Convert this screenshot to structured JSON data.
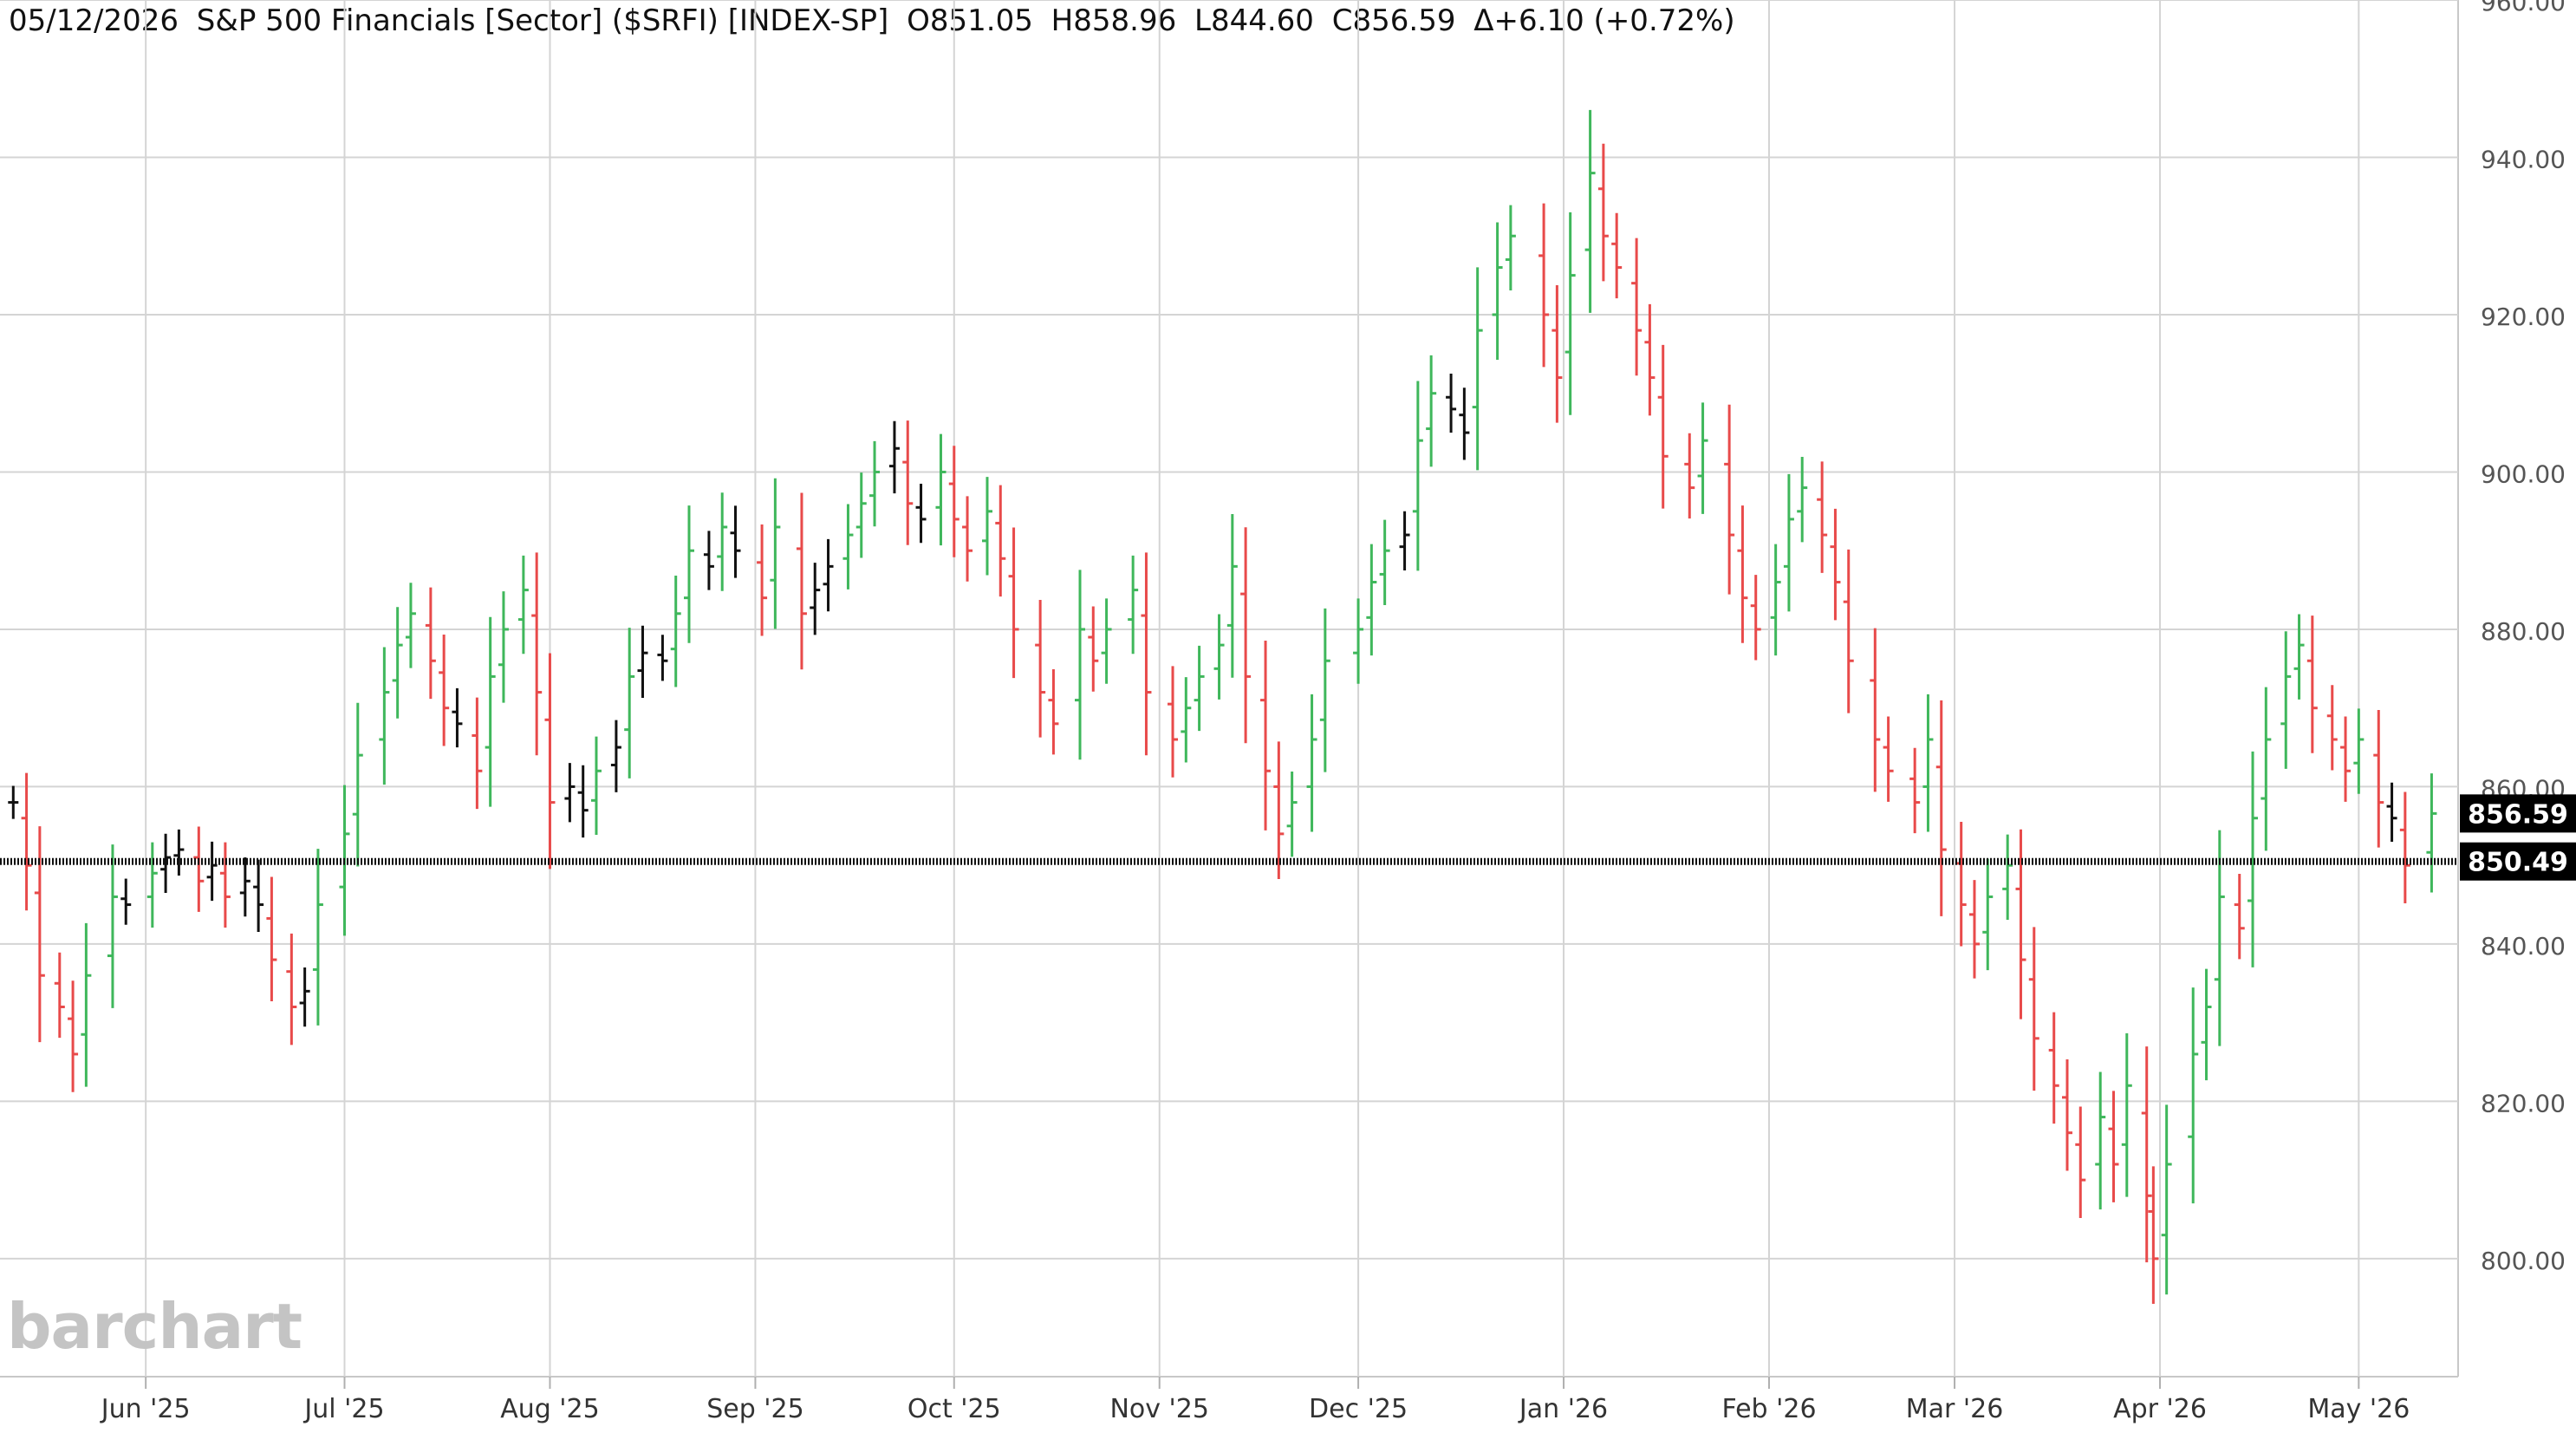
{
  "header": {
    "date": "05/12/2026",
    "name": "S&P 500 Financials [Sector] ($SRFI) [INDEX-SP]",
    "open": "O851.05",
    "high": "H858.96",
    "low": "L844.60",
    "close": "C856.59",
    "change": "Δ+6.10 (+0.72%)"
  },
  "watermark": "barchart",
  "colors": {
    "up": "#3fb75b",
    "down": "#e84a4a",
    "neutral": "#111111",
    "grid": "#d4d4d4",
    "axis_text": "#555555"
  },
  "chart_data": {
    "type": "ohlc-bar",
    "symbol": "$SRFI",
    "ylim": [
      785,
      960
    ],
    "yticks": [
      800,
      820,
      840,
      860,
      880,
      900,
      920,
      940,
      960
    ],
    "ytick_labels": [
      "800.00",
      "820.00",
      "840.00",
      "860.00",
      "880.00",
      "900.00",
      "920.00",
      "940.00",
      "960.00"
    ],
    "xticks": [
      {
        "label": "Jun '25",
        "date": "2025-06-01"
      },
      {
        "label": "Jul '25",
        "date": "2025-07-01"
      },
      {
        "label": "Aug '25",
        "date": "2025-08-01"
      },
      {
        "label": "Sep '25",
        "date": "2025-09-01"
      },
      {
        "label": "Oct '25",
        "date": "2025-10-01"
      },
      {
        "label": "Nov '25",
        "date": "2025-11-01"
      },
      {
        "label": "Dec '25",
        "date": "2025-12-01"
      },
      {
        "label": "Jan '26",
        "date": "2026-01-01"
      },
      {
        "label": "Feb '26",
        "date": "2026-02-01"
      },
      {
        "label": "Mar '26",
        "date": "2026-03-01"
      },
      {
        "label": "Apr '26",
        "date": "2026-04-01"
      },
      {
        "label": "May '26",
        "date": "2026-05-01"
      }
    ],
    "last_price": 856.59,
    "last_price_label": "856.59",
    "reference_line": 850.49,
    "reference_line_label": "850.49",
    "grid": true,
    "series": [
      {
        "x": "2025-05-12",
        "close": 858
      },
      {
        "x": "2025-05-14",
        "close": 850
      },
      {
        "x": "2025-05-16",
        "close": 836
      },
      {
        "x": "2025-05-19",
        "close": 832
      },
      {
        "x": "2025-05-21",
        "close": 826
      },
      {
        "x": "2025-05-23",
        "close": 836
      },
      {
        "x": "2025-05-27",
        "close": 846
      },
      {
        "x": "2025-05-29",
        "close": 845
      },
      {
        "x": "2025-06-02",
        "close": 849
      },
      {
        "x": "2025-06-04",
        "close": 851
      },
      {
        "x": "2025-06-06",
        "close": 852
      },
      {
        "x": "2025-06-09",
        "close": 848
      },
      {
        "x": "2025-06-11",
        "close": 850
      },
      {
        "x": "2025-06-13",
        "close": 846
      },
      {
        "x": "2025-06-16",
        "close": 848
      },
      {
        "x": "2025-06-18",
        "close": 845
      },
      {
        "x": "2025-06-20",
        "close": 838
      },
      {
        "x": "2025-06-23",
        "close": 832
      },
      {
        "x": "2025-06-25",
        "close": 834
      },
      {
        "x": "2025-06-27",
        "close": 845
      },
      {
        "x": "2025-07-01",
        "close": 854
      },
      {
        "x": "2025-07-03",
        "close": 864
      },
      {
        "x": "2025-07-07",
        "close": 872
      },
      {
        "x": "2025-07-09",
        "close": 878
      },
      {
        "x": "2025-07-11",
        "close": 882
      },
      {
        "x": "2025-07-14",
        "close": 876
      },
      {
        "x": "2025-07-16",
        "close": 870
      },
      {
        "x": "2025-07-18",
        "close": 868
      },
      {
        "x": "2025-07-21",
        "close": 862
      },
      {
        "x": "2025-07-23",
        "close": 874
      },
      {
        "x": "2025-07-25",
        "close": 880
      },
      {
        "x": "2025-07-28",
        "close": 885
      },
      {
        "x": "2025-07-30",
        "close": 872
      },
      {
        "x": "2025-08-01",
        "close": 858
      },
      {
        "x": "2025-08-04",
        "close": 860
      },
      {
        "x": "2025-08-06",
        "close": 857
      },
      {
        "x": "2025-08-08",
        "close": 862
      },
      {
        "x": "2025-08-11",
        "close": 865
      },
      {
        "x": "2025-08-13",
        "close": 874
      },
      {
        "x": "2025-08-15",
        "close": 877
      },
      {
        "x": "2025-08-18",
        "close": 876
      },
      {
        "x": "2025-08-20",
        "close": 882
      },
      {
        "x": "2025-08-22",
        "close": 890
      },
      {
        "x": "2025-08-25",
        "close": 888
      },
      {
        "x": "2025-08-27",
        "close": 893
      },
      {
        "x": "2025-08-29",
        "close": 890
      },
      {
        "x": "2025-09-02",
        "close": 884
      },
      {
        "x": "2025-09-04",
        "close": 893
      },
      {
        "x": "2025-09-08",
        "close": 882
      },
      {
        "x": "2025-09-10",
        "close": 885
      },
      {
        "x": "2025-09-12",
        "close": 888
      },
      {
        "x": "2025-09-15",
        "close": 892
      },
      {
        "x": "2025-09-17",
        "close": 896
      },
      {
        "x": "2025-09-19",
        "close": 900
      },
      {
        "x": "2025-09-22",
        "close": 903
      },
      {
        "x": "2025-09-24",
        "close": 896
      },
      {
        "x": "2025-09-26",
        "close": 894
      },
      {
        "x": "2025-09-29",
        "close": 900
      },
      {
        "x": "2025-10-01",
        "close": 894
      },
      {
        "x": "2025-10-03",
        "close": 890
      },
      {
        "x": "2025-10-06",
        "close": 895
      },
      {
        "x": "2025-10-08",
        "close": 889
      },
      {
        "x": "2025-10-10",
        "close": 880
      },
      {
        "x": "2025-10-14",
        "close": 872
      },
      {
        "x": "2025-10-16",
        "close": 868
      },
      {
        "x": "2025-10-20",
        "close": 880
      },
      {
        "x": "2025-10-22",
        "close": 876
      },
      {
        "x": "2025-10-24",
        "close": 880
      },
      {
        "x": "2025-10-28",
        "close": 885
      },
      {
        "x": "2025-10-30",
        "close": 872
      },
      {
        "x": "2025-11-03",
        "close": 866
      },
      {
        "x": "2025-11-05",
        "close": 870
      },
      {
        "x": "2025-11-07",
        "close": 874
      },
      {
        "x": "2025-11-10",
        "close": 878
      },
      {
        "x": "2025-11-12",
        "close": 888
      },
      {
        "x": "2025-11-14",
        "close": 874
      },
      {
        "x": "2025-11-17",
        "close": 862
      },
      {
        "x": "2025-11-19",
        "close": 854
      },
      {
        "x": "2025-11-21",
        "close": 858
      },
      {
        "x": "2025-11-24",
        "close": 866
      },
      {
        "x": "2025-11-26",
        "close": 876
      },
      {
        "x": "2025-12-01",
        "close": 880
      },
      {
        "x": "2025-12-03",
        "close": 886
      },
      {
        "x": "2025-12-05",
        "close": 890
      },
      {
        "x": "2025-12-08",
        "close": 892
      },
      {
        "x": "2025-12-10",
        "close": 904
      },
      {
        "x": "2025-12-12",
        "close": 910
      },
      {
        "x": "2025-12-15",
        "close": 908
      },
      {
        "x": "2025-12-17",
        "close": 905
      },
      {
        "x": "2025-12-19",
        "close": 918
      },
      {
        "x": "2025-12-22",
        "close": 926
      },
      {
        "x": "2025-12-24",
        "close": 930
      },
      {
        "x": "2025-12-29",
        "close": 920
      },
      {
        "x": "2025-12-31",
        "close": 912
      },
      {
        "x": "2026-01-02",
        "close": 925
      },
      {
        "x": "2026-01-05",
        "close": 938
      },
      {
        "x": "2026-01-07",
        "close": 930
      },
      {
        "x": "2026-01-09",
        "close": 926
      },
      {
        "x": "2026-01-12",
        "close": 918
      },
      {
        "x": "2026-01-14",
        "close": 912
      },
      {
        "x": "2026-01-16",
        "close": 902
      },
      {
        "x": "2026-01-20",
        "close": 898
      },
      {
        "x": "2026-01-22",
        "close": 904
      },
      {
        "x": "2026-01-26",
        "close": 892
      },
      {
        "x": "2026-01-28",
        "close": 884
      },
      {
        "x": "2026-01-30",
        "close": 880
      },
      {
        "x": "2026-02-02",
        "close": 886
      },
      {
        "x": "2026-02-04",
        "close": 894
      },
      {
        "x": "2026-02-06",
        "close": 898
      },
      {
        "x": "2026-02-09",
        "close": 892
      },
      {
        "x": "2026-02-11",
        "close": 886
      },
      {
        "x": "2026-02-13",
        "close": 876
      },
      {
        "x": "2026-02-17",
        "close": 866
      },
      {
        "x": "2026-02-19",
        "close": 862
      },
      {
        "x": "2026-02-23",
        "close": 858
      },
      {
        "x": "2026-02-25",
        "close": 866
      },
      {
        "x": "2026-02-27",
        "close": 852
      },
      {
        "x": "2026-03-02",
        "close": 845
      },
      {
        "x": "2026-03-04",
        "close": 840
      },
      {
        "x": "2026-03-06",
        "close": 846
      },
      {
        "x": "2026-03-09",
        "close": 850
      },
      {
        "x": "2026-03-11",
        "close": 838
      },
      {
        "x": "2026-03-13",
        "close": 828
      },
      {
        "x": "2026-03-16",
        "close": 822
      },
      {
        "x": "2026-03-18",
        "close": 816
      },
      {
        "x": "2026-03-20",
        "close": 810
      },
      {
        "x": "2026-03-23",
        "close": 818
      },
      {
        "x": "2026-03-25",
        "close": 812
      },
      {
        "x": "2026-03-27",
        "close": 822
      },
      {
        "x": "2026-03-30",
        "close": 808
      },
      {
        "x": "2026-03-31",
        "close": 800
      },
      {
        "x": "2026-04-02",
        "close": 812
      },
      {
        "x": "2026-04-06",
        "close": 826
      },
      {
        "x": "2026-04-08",
        "close": 832
      },
      {
        "x": "2026-04-10",
        "close": 846
      },
      {
        "x": "2026-04-13",
        "close": 842
      },
      {
        "x": "2026-04-15",
        "close": 856
      },
      {
        "x": "2026-04-17",
        "close": 866
      },
      {
        "x": "2026-04-20",
        "close": 874
      },
      {
        "x": "2026-04-22",
        "close": 878
      },
      {
        "x": "2026-04-24",
        "close": 870
      },
      {
        "x": "2026-04-27",
        "close": 866
      },
      {
        "x": "2026-04-29",
        "close": 862
      },
      {
        "x": "2026-05-01",
        "close": 866
      },
      {
        "x": "2026-05-04",
        "close": 858
      },
      {
        "x": "2026-05-06",
        "close": 856
      },
      {
        "x": "2026-05-08",
        "close": 850
      },
      {
        "x": "2026-05-12",
        "close": 856.59
      }
    ]
  }
}
